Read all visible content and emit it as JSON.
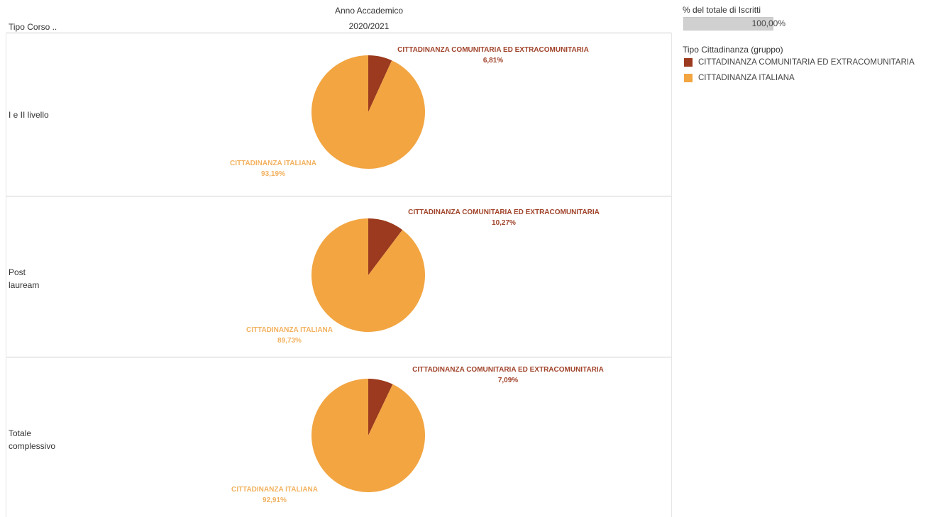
{
  "header": {
    "column_field": "Anno Accademico",
    "column_value": "2020/2021",
    "row_field": "Tipo Corso .."
  },
  "filter": {
    "title": "% del totale di Iscritti",
    "value_label": "100,00%",
    "value": 100
  },
  "legend": {
    "title": "Tipo Cittadinanza (gruppo)",
    "items": [
      {
        "label": "CITTADINANZA COMUNITARIA ED EXTRACOMUNITARIA",
        "color": "#9b3a1e"
      },
      {
        "label": "CITTADINANZA ITALIANA",
        "color": "#f2a541"
      }
    ]
  },
  "rows": [
    {
      "label": "I e II livello"
    },
    {
      "label": "Post\nlauream"
    },
    {
      "label": "Totale\ncomplessivo"
    }
  ],
  "chart_data": [
    {
      "type": "pie",
      "row": "I e II livello",
      "slices": [
        {
          "name": "CITTADINANZA COMUNITARIA ED EXTRACOMUNITARIA",
          "value": 6.81,
          "label": "6,81%"
        },
        {
          "name": "CITTADINANZA ITALIANA",
          "value": 93.19,
          "label": "93,19%"
        }
      ]
    },
    {
      "type": "pie",
      "row": "Post lauream",
      "slices": [
        {
          "name": "CITTADINANZA COMUNITARIA ED EXTRACOMUNITARIA",
          "value": 10.27,
          "label": "10,27%"
        },
        {
          "name": "CITTADINANZA ITALIANA",
          "value": 89.73,
          "label": "89,73%"
        }
      ]
    },
    {
      "type": "pie",
      "row": "Totale complessivo",
      "slices": [
        {
          "name": "CITTADINANZA COMUNITARIA ED EXTRACOMUNITARIA",
          "value": 7.09,
          "label": "7,09%"
        },
        {
          "name": "CITTADINANZA ITALIANA",
          "value": 92.91,
          "label": "92,91%"
        }
      ]
    }
  ]
}
